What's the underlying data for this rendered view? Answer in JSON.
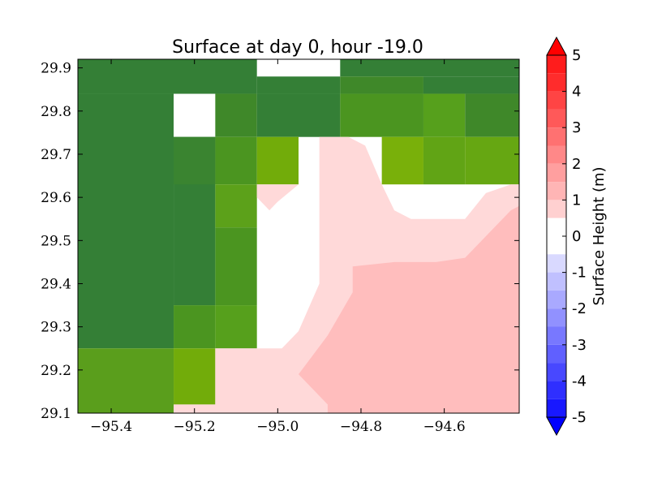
{
  "chart_data": {
    "type": "heatmap",
    "title": "Surface at day 0, hour -19.0",
    "xlim": [
      -95.48,
      -94.42
    ],
    "ylim": [
      29.1,
      29.92
    ],
    "x_ticks": [
      {
        "value": -95.4,
        "label": "−95.4"
      },
      {
        "value": -95.2,
        "label": "−95.2"
      },
      {
        "value": -95.0,
        "label": "−95.0"
      },
      {
        "value": -94.8,
        "label": "−94.8"
      },
      {
        "value": -94.6,
        "label": "−94.6"
      }
    ],
    "y_ticks": [
      {
        "value": 29.1,
        "label": "29.1"
      },
      {
        "value": 29.2,
        "label": "29.2"
      },
      {
        "value": 29.3,
        "label": "29.3"
      },
      {
        "value": 29.4,
        "label": "29.4"
      },
      {
        "value": 29.5,
        "label": "29.5"
      },
      {
        "value": 29.6,
        "label": "29.6"
      },
      {
        "value": 29.7,
        "label": "29.7"
      },
      {
        "value": 29.8,
        "label": "29.8"
      },
      {
        "value": 29.9,
        "label": "29.9"
      }
    ],
    "land_cells": [
      {
        "x0": -95.48,
        "x1": -95.05,
        "y0": 29.84,
        "y1": 29.92,
        "color": "#347f36"
      },
      {
        "x0": -95.05,
        "x1": -94.85,
        "y0": 29.92,
        "y1": 29.92,
        "color": "#347f36"
      },
      {
        "x0": -94.85,
        "x1": -94.42,
        "y0": 29.88,
        "y1": 29.92,
        "color": "#347f36"
      },
      {
        "x0": -95.05,
        "x1": -94.85,
        "y0": 29.84,
        "y1": 29.88,
        "color": "#347f36"
      },
      {
        "x0": -94.85,
        "x1": -94.65,
        "y0": 29.84,
        "y1": 29.88,
        "color": "#3f8829"
      },
      {
        "x0": -94.65,
        "x1": -94.42,
        "y0": 29.84,
        "y1": 29.88,
        "color": "#347f36"
      },
      {
        "x0": -95.48,
        "x1": -95.25,
        "y0": 29.25,
        "y1": 29.84,
        "color": "#347f36"
      },
      {
        "x0": -95.25,
        "x1": -95.15,
        "y0": 29.35,
        "y1": 29.74,
        "color": "#347f36"
      },
      {
        "x0": -95.15,
        "x1": -95.05,
        "y0": 29.74,
        "y1": 29.84,
        "color": "#3f8829"
      },
      {
        "x0": -95.05,
        "x1": -94.85,
        "y0": 29.74,
        "y1": 29.84,
        "color": "#347f36"
      },
      {
        "x0": -94.85,
        "x1": -94.65,
        "y0": 29.74,
        "y1": 29.84,
        "color": "#4b9520"
      },
      {
        "x0": -94.65,
        "x1": -94.55,
        "y0": 29.74,
        "y1": 29.84,
        "color": "#56a01c"
      },
      {
        "x0": -94.55,
        "x1": -94.42,
        "y0": 29.74,
        "y1": 29.84,
        "color": "#3f8829"
      },
      {
        "x0": -95.25,
        "x1": -95.15,
        "y0": 29.63,
        "y1": 29.74,
        "color": "#3a8430"
      },
      {
        "x0": -95.15,
        "x1": -95.05,
        "y0": 29.63,
        "y1": 29.74,
        "color": "#4b9520"
      },
      {
        "x0": -95.05,
        "x1": -94.95,
        "y0": 29.63,
        "y1": 29.74,
        "color": "#72ac0a"
      },
      {
        "x0": -94.75,
        "x1": -94.65,
        "y0": 29.63,
        "y1": 29.74,
        "color": "#79b00a"
      },
      {
        "x0": -94.65,
        "x1": -94.55,
        "y0": 29.63,
        "y1": 29.74,
        "color": "#61a415"
      },
      {
        "x0": -94.55,
        "x1": -94.42,
        "y0": 29.63,
        "y1": 29.74,
        "color": "#66a712"
      },
      {
        "x0": -95.15,
        "x1": -95.05,
        "y0": 29.53,
        "y1": 29.63,
        "color": "#5ca11a"
      },
      {
        "x0": -95.15,
        "x1": -95.05,
        "y0": 29.35,
        "y1": 29.53,
        "color": "#4b9520"
      },
      {
        "x0": -95.25,
        "x1": -95.15,
        "y0": 29.25,
        "y1": 29.35,
        "color": "#4b9520"
      },
      {
        "x0": -95.15,
        "x1": -95.05,
        "y0": 29.25,
        "y1": 29.35,
        "color": "#56a01c"
      },
      {
        "x0": -95.48,
        "x1": -95.25,
        "y0": 29.1,
        "y1": 29.25,
        "color": "#5a9e1c"
      },
      {
        "x0": -95.25,
        "x1": -95.15,
        "y0": 29.12,
        "y1": 29.25,
        "color": "#72ac0a"
      }
    ],
    "surface_regions": [
      {
        "level": "0-1",
        "color": "#ffd9d9",
        "polygon": [
          [
            -95.25,
            29.1
          ],
          [
            -95.25,
            29.12
          ],
          [
            -95.15,
            29.12
          ],
          [
            -95.15,
            29.25
          ],
          [
            -95.05,
            29.25
          ],
          [
            -94.99,
            29.25
          ],
          [
            -94.95,
            29.29
          ],
          [
            -94.9,
            29.4
          ],
          [
            -94.9,
            29.63
          ],
          [
            -94.9,
            29.74
          ],
          [
            -94.83,
            29.74
          ],
          [
            -94.79,
            29.72
          ],
          [
            -94.75,
            29.63
          ],
          [
            -94.72,
            29.57
          ],
          [
            -94.68,
            29.55
          ],
          [
            -94.55,
            29.55
          ],
          [
            -94.5,
            29.61
          ],
          [
            -94.44,
            29.63
          ],
          [
            -94.42,
            29.63
          ],
          [
            -94.42,
            29.1
          ]
        ]
      },
      {
        "level": "0-1",
        "color": "#ffd9d9",
        "polygon": [
          [
            -95.05,
            29.63
          ],
          [
            -94.95,
            29.63
          ],
          [
            -95.0,
            29.59
          ],
          [
            -95.02,
            29.57
          ],
          [
            -95.05,
            29.6
          ]
        ]
      },
      {
        "level": "1-2",
        "color": "#ffbdbd",
        "polygon": [
          [
            -94.88,
            29.12
          ],
          [
            -94.9,
            29.14
          ],
          [
            -94.95,
            29.19
          ],
          [
            -94.88,
            29.28
          ],
          [
            -94.82,
            29.38
          ],
          [
            -94.82,
            29.44
          ],
          [
            -94.72,
            29.45
          ],
          [
            -94.62,
            29.45
          ],
          [
            -94.55,
            29.46
          ],
          [
            -94.48,
            29.53
          ],
          [
            -94.44,
            29.57
          ],
          [
            -94.42,
            29.58
          ],
          [
            -94.42,
            29.1
          ],
          [
            -94.88,
            29.1
          ]
        ]
      }
    ],
    "colorbar": {
      "label": "Surface Height (m)",
      "min": -5,
      "max": 5,
      "ticks": [
        {
          "value": 5,
          "label": "5"
        },
        {
          "value": 4,
          "label": "4"
        },
        {
          "value": 3,
          "label": "3"
        },
        {
          "value": 2,
          "label": "2"
        },
        {
          "value": 1,
          "label": "1"
        },
        {
          "value": 0,
          "label": "0"
        },
        {
          "value": -1,
          "label": "-1"
        },
        {
          "value": -2,
          "label": "-2"
        },
        {
          "value": -3,
          "label": "-3"
        },
        {
          "value": -4,
          "label": "-4"
        },
        {
          "value": -5,
          "label": "-5"
        }
      ],
      "bands": [
        {
          "from": 4.5,
          "to": 5,
          "color": "#ff1c1c"
        },
        {
          "from": 4,
          "to": 4.5,
          "color": "#ff2c2c"
        },
        {
          "from": 3.5,
          "to": 4,
          "color": "#ff4444"
        },
        {
          "from": 3,
          "to": 3.5,
          "color": "#ff5959"
        },
        {
          "from": 2.5,
          "to": 3,
          "color": "#ff7171"
        },
        {
          "from": 2,
          "to": 2.5,
          "color": "#ff8888"
        },
        {
          "from": 1.5,
          "to": 2,
          "color": "#ff9f9f"
        },
        {
          "from": 1,
          "to": 1.5,
          "color": "#ffb5b5"
        },
        {
          "from": 0.5,
          "to": 1,
          "color": "#ffd0d0"
        },
        {
          "from": 0,
          "to": 0.5,
          "color": "#ffffff"
        },
        {
          "from": -0.5,
          "to": 0,
          "color": "#ffffff"
        },
        {
          "from": -1,
          "to": -0.5,
          "color": "#d9d9ff"
        },
        {
          "from": -1.5,
          "to": -1,
          "color": "#c0c0ff"
        },
        {
          "from": -2,
          "to": -1.5,
          "color": "#a9a9ff"
        },
        {
          "from": -2.5,
          "to": -2,
          "color": "#9191ff"
        },
        {
          "from": -3,
          "to": -2.5,
          "color": "#7878ff"
        },
        {
          "from": -3.5,
          "to": -3,
          "color": "#6060ff"
        },
        {
          "from": -4,
          "to": -3.5,
          "color": "#4848ff"
        },
        {
          "from": -4.5,
          "to": -4,
          "color": "#2f2fff"
        },
        {
          "from": -5,
          "to": -4.5,
          "color": "#1818ff"
        }
      ],
      "over_color": "#ff0000",
      "under_color": "#0000ff"
    },
    "background_color": "#ffffff",
    "grid": false
  }
}
